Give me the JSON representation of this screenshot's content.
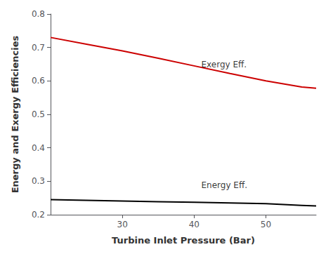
{
  "chart_data": {
    "type": "line",
    "xlabel": "Turbine Inlet Pressure (Bar)",
    "ylabel": "Energy and Exergy Efficiencies",
    "x": [
      20,
      25,
      30,
      35,
      40,
      45,
      50,
      55,
      57
    ],
    "series": [
      {
        "color": "#cc0000",
        "values": [
          0.73,
          0.71,
          0.69,
          0.668,
          0.645,
          0.622,
          0.6,
          0.582,
          0.578
        ]
      },
      {
        "color": "#000000",
        "values": [
          0.245,
          0.243,
          0.241,
          0.239,
          0.237,
          0.235,
          0.233,
          0.228,
          0.226
        ]
      }
    ],
    "annotations": [
      {
        "text": "Exergy Eff.",
        "x": 41,
        "y": 0.648
      },
      {
        "text": "Energy Eff.",
        "x": 41,
        "y": 0.288
      }
    ],
    "xlim": [
      20,
      57
    ],
    "xticks": [
      30,
      40,
      50
    ],
    "ylim": [
      0.2,
      0.8
    ],
    "yticks": [
      0.2,
      0.3,
      0.4,
      0.5,
      0.6,
      0.7,
      0.8
    ],
    "grid": false
  }
}
